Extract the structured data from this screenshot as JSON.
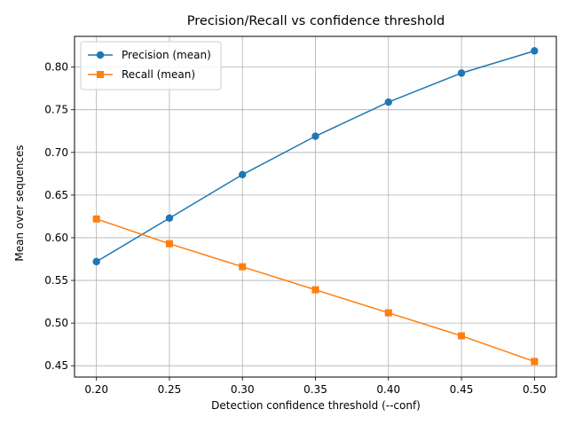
{
  "chart_data": {
    "type": "line",
    "title": "Precision/Recall vs confidence threshold",
    "xlabel": "Detection confidence threshold (--conf)",
    "ylabel": "Mean over sequences",
    "x": [
      0.2,
      0.25,
      0.3,
      0.35,
      0.4,
      0.45,
      0.5
    ],
    "xlim": [
      0.185,
      0.515
    ],
    "ylim": [
      0.4367,
      0.836
    ],
    "xticks": [
      "0.20",
      "0.25",
      "0.30",
      "0.35",
      "0.40",
      "0.45",
      "0.50"
    ],
    "yticks": [
      "0.45",
      "0.50",
      "0.55",
      "0.60",
      "0.65",
      "0.70",
      "0.75",
      "0.80"
    ],
    "grid": true,
    "legend_position": "top-left",
    "series": [
      {
        "name": "Precision (mean)",
        "color": "#1f77b4",
        "marker": "circle",
        "values": [
          0.572,
          0.623,
          0.674,
          0.719,
          0.759,
          0.793,
          0.819
        ]
      },
      {
        "name": "Recall (mean)",
        "color": "#ff7f0e",
        "marker": "square",
        "values": [
          0.622,
          0.593,
          0.566,
          0.539,
          0.512,
          0.485,
          0.455
        ]
      }
    ]
  }
}
